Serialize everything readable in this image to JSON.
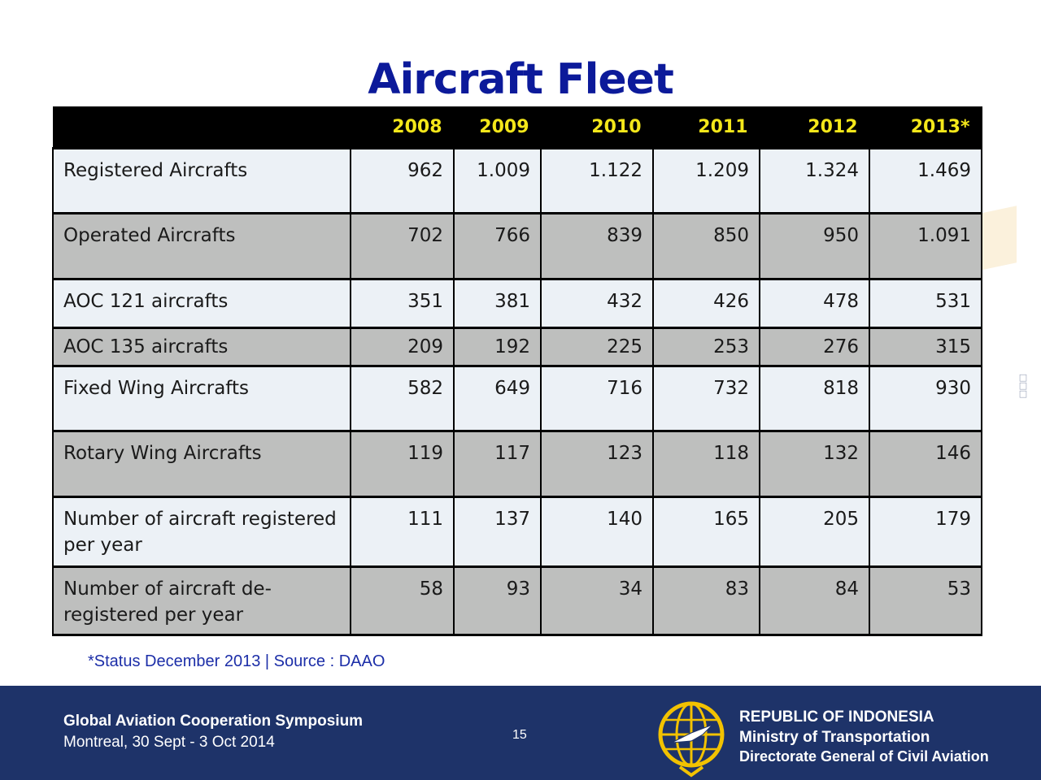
{
  "title": "Aircraft Fleet",
  "table": {
    "years": [
      "2008",
      "2009",
      "2010",
      "2011",
      "2012",
      "2013*"
    ],
    "rows": [
      {
        "label": "Registered Aircrafts",
        "values": [
          "962",
          "1.009",
          "1.122",
          "1.209",
          "1.324",
          "1.469"
        ]
      },
      {
        "label": "Operated Aircrafts",
        "values": [
          "702",
          "766",
          "839",
          "850",
          "950",
          "1.091"
        ]
      },
      {
        "label": "AOC 121 aircrafts",
        "values": [
          "351",
          "381",
          "432",
          "426",
          "478",
          "531"
        ]
      },
      {
        "label": "AOC 135 aircrafts",
        "values": [
          "209",
          "192",
          "225",
          "253",
          "276",
          "315"
        ]
      },
      {
        "label": "Fixed Wing Aircrafts",
        "values": [
          "582",
          "649",
          "716",
          "732",
          "818",
          "930"
        ]
      },
      {
        "label": "Rotary Wing Aircrafts",
        "values": [
          "119",
          "117",
          "123",
          "118",
          "132",
          "146"
        ]
      },
      {
        "label": "Number of aircraft registered per year",
        "values": [
          "111",
          "137",
          "140",
          "165",
          "205",
          "179"
        ]
      },
      {
        "label": "Number of aircraft de-registered per year",
        "values": [
          "58",
          "93",
          "34",
          "83",
          "84",
          "53"
        ]
      }
    ]
  },
  "footnote": "*Status  December 2013 | Source : DAAO",
  "footer": {
    "event": "Global Aviation Cooperation Symposium",
    "place": "Montreal, 30 Sept  - 3 Oct 2014",
    "page_number": "15",
    "org_line1": "REPUBLIC OF INDONESIA",
    "org_line2": "Ministry of Transportation",
    "org_line3": "Directorate General of Civil Aviation"
  },
  "colors": {
    "title": "#0c1a9a",
    "header_bg": "#000000",
    "header_text": "#f4e71a",
    "row_light": "#ecf1f6",
    "row_dark": "#bebfbe",
    "footer_bg": "#1e3369",
    "logo_ring": "#f2c200"
  },
  "icons": {
    "logo": "ministry-emblem-icon"
  }
}
